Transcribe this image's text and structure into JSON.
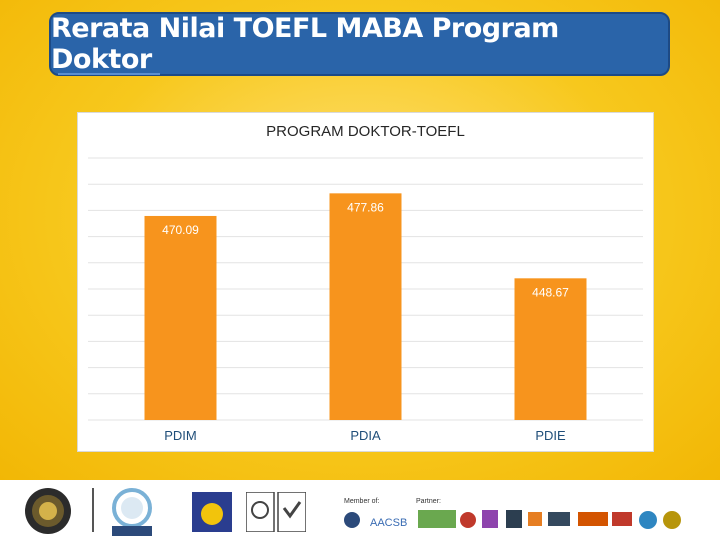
{
  "slide": {
    "title": "Rerata Nilai TOEFL MABA Program Doktor"
  },
  "chart_data": {
    "type": "bar",
    "title": "PROGRAM DOKTOR-TOEFL",
    "categories": [
      "PDIM",
      "PDIA",
      "PDIE"
    ],
    "values": [
      470.09,
      477.86,
      448.67
    ],
    "value_labels": [
      "470.09",
      "477.86",
      "448.67"
    ],
    "ylim": [
      400,
      490
    ],
    "grid": true,
    "bar_color": "#f7941d"
  },
  "footer": {
    "membership_label": "Member of:",
    "partner_label": "Partner:"
  }
}
